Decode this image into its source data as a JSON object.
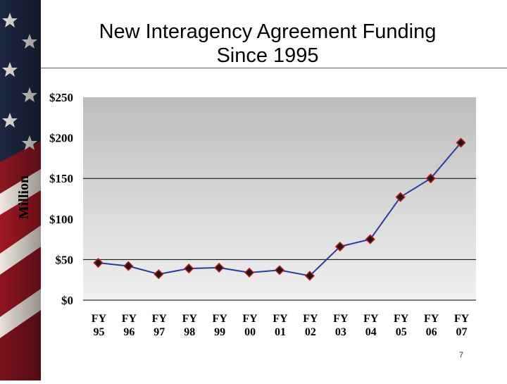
{
  "slide": {
    "title_line1": "New Interagency Agreement Funding",
    "title_line2": "Since 1995",
    "page_number": "7"
  },
  "colors": {
    "line": "#2B3A9C",
    "marker_fill": "#1a1a1a",
    "marker_stroke": "#C0161B",
    "plot_bg_top": "#bdbdbd",
    "plot_bg_bottom": "#f0f0f0"
  },
  "chart_data": {
    "type": "line",
    "title": "New Interagency Agreement Funding Since 1995",
    "ylabel": "Million",
    "xlabel": "",
    "categories": [
      [
        "FY",
        "95"
      ],
      [
        "FY",
        "96"
      ],
      [
        "FY",
        "97"
      ],
      [
        "FY",
        "98"
      ],
      [
        "FY",
        "99"
      ],
      [
        "FY",
        "00"
      ],
      [
        "FY",
        "01"
      ],
      [
        "FY",
        "02"
      ],
      [
        "FY",
        "03"
      ],
      [
        "FY",
        "04"
      ],
      [
        "FY",
        "05"
      ],
      [
        "FY",
        "06"
      ],
      [
        "FY",
        "07"
      ]
    ],
    "values": [
      46,
      42,
      32,
      39,
      40,
      34,
      37,
      30,
      66,
      75,
      127,
      150,
      194
    ],
    "ylim": [
      0,
      250
    ],
    "yticks": [
      0,
      50,
      100,
      150,
      200,
      250
    ],
    "ytick_labels": [
      "$0",
      "$50",
      "$100",
      "$150",
      "$200",
      "$250"
    ],
    "grid": true,
    "legend": "none"
  }
}
